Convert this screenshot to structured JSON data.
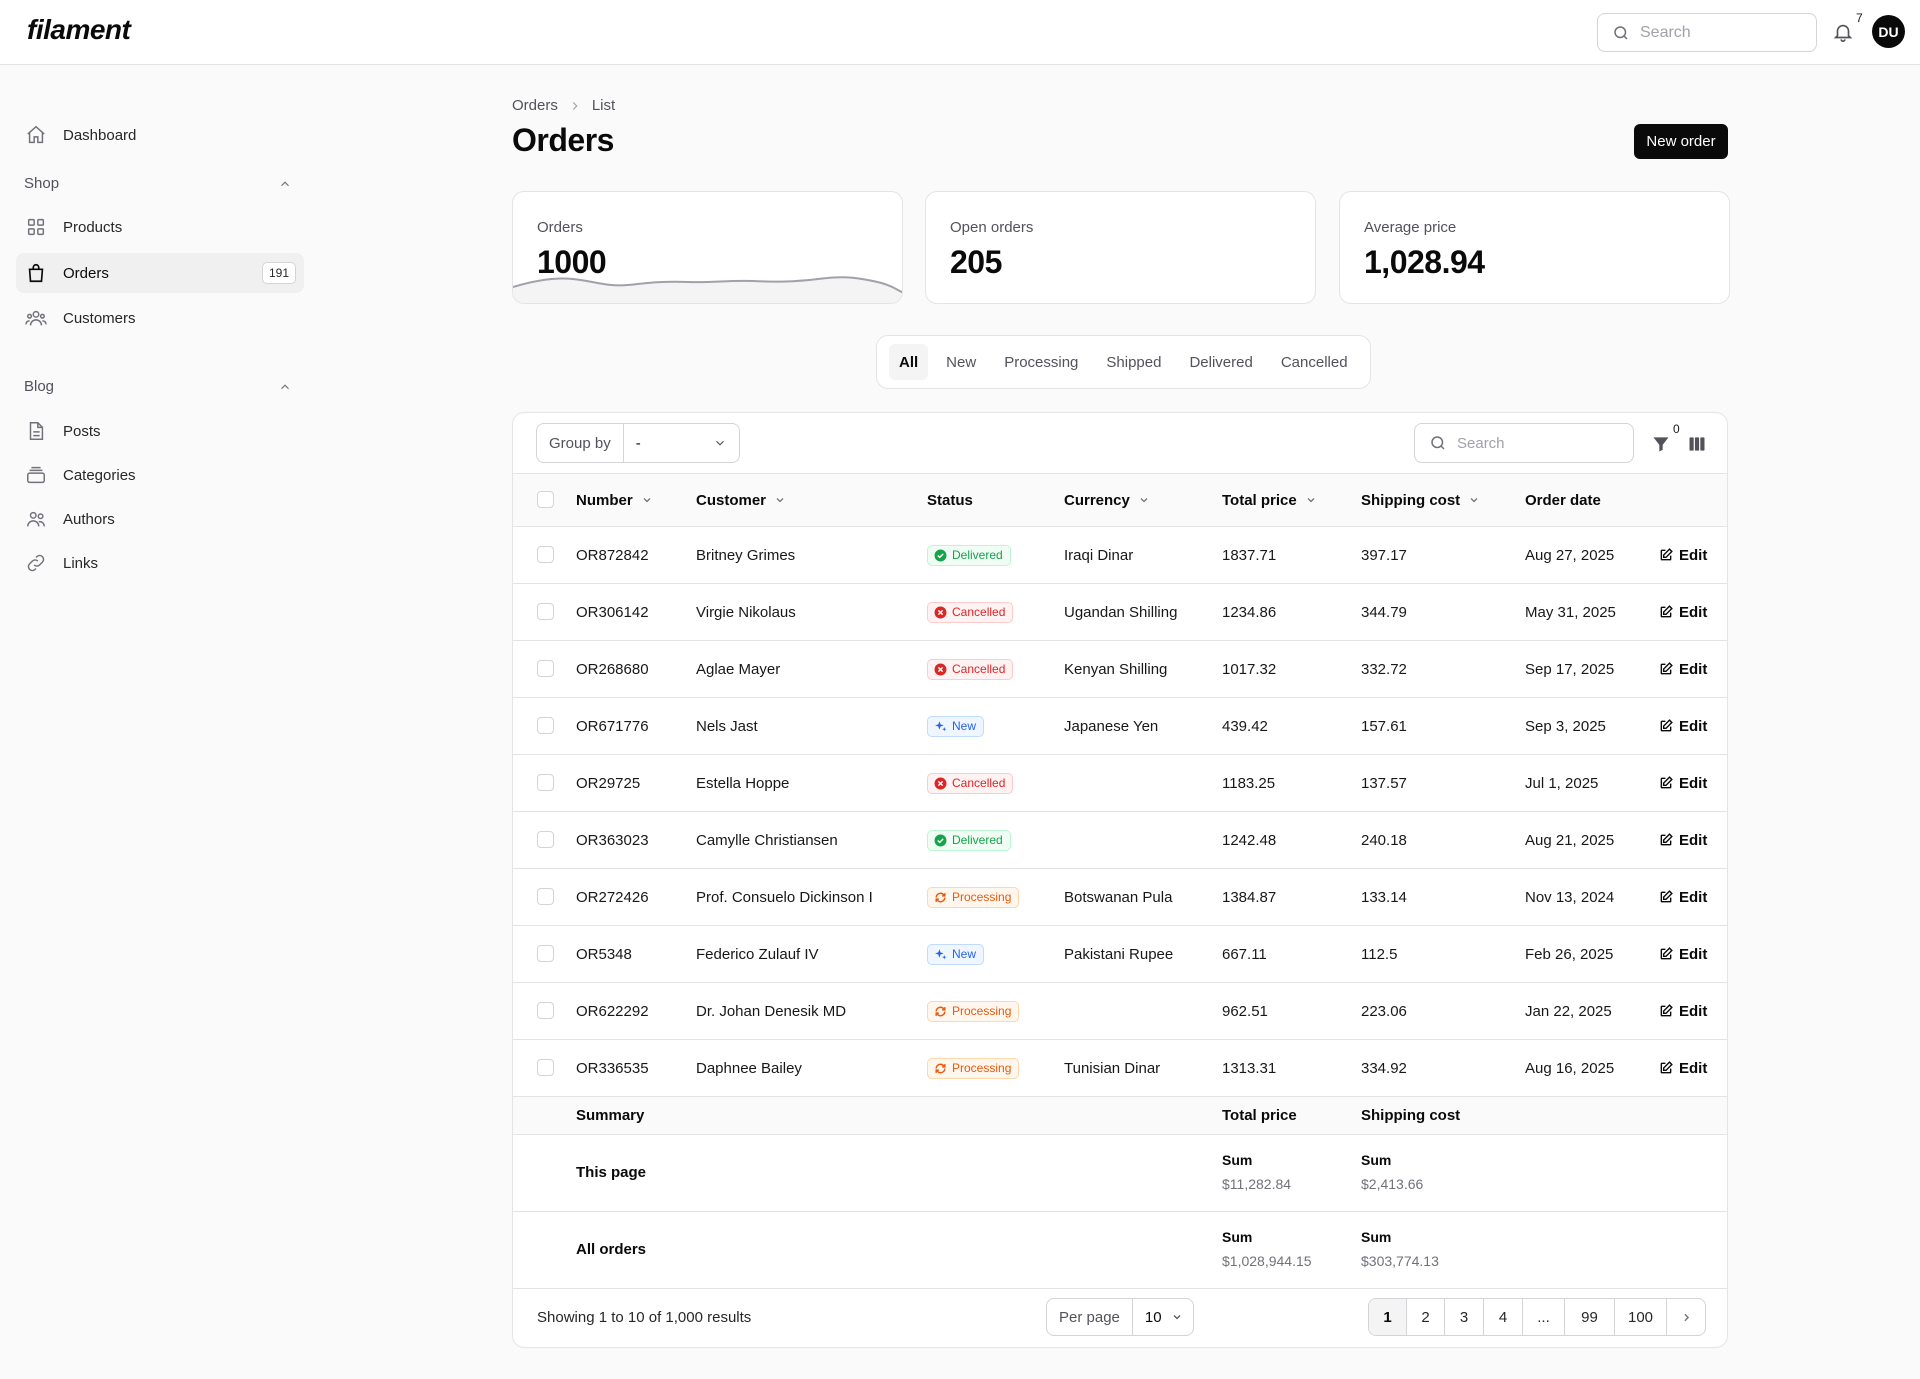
{
  "app": {
    "logo": "filament"
  },
  "topbar": {
    "search_placeholder": "Search",
    "notification_count": "7",
    "avatar_initials": "DU"
  },
  "sidebar": {
    "dashboard": "Dashboard",
    "groups": [
      {
        "label": "Shop",
        "items": [
          {
            "label": "Products"
          },
          {
            "label": "Orders",
            "badge": "191"
          },
          {
            "label": "Customers"
          }
        ]
      },
      {
        "label": "Blog",
        "items": [
          {
            "label": "Posts"
          },
          {
            "label": "Categories"
          },
          {
            "label": "Authors"
          },
          {
            "label": "Links"
          }
        ]
      }
    ]
  },
  "breadcrumb": [
    "Orders",
    "List"
  ],
  "page": {
    "title": "Orders",
    "new_button": "New order"
  },
  "stats": [
    {
      "label": "Orders",
      "value": "1000"
    },
    {
      "label": "Open orders",
      "value": "205"
    },
    {
      "label": "Average price",
      "value": "1,028.94"
    }
  ],
  "tabs": [
    "All",
    "New",
    "Processing",
    "Shipped",
    "Delivered",
    "Cancelled"
  ],
  "table": {
    "group_by_label": "Group by",
    "group_by_value": "-",
    "search_placeholder": "Search",
    "filter_count": "0",
    "columns": [
      "Number",
      "Customer",
      "Status",
      "Currency",
      "Total price",
      "Shipping cost",
      "Order date"
    ],
    "edit_label": "Edit",
    "rows": [
      {
        "number": "OR872842",
        "customer": "Britney Grimes",
        "status": "Delivered",
        "currency": "Iraqi Dinar",
        "total": "1837.71",
        "shipping": "397.17",
        "date": "Aug 27, 2025"
      },
      {
        "number": "OR306142",
        "customer": "Virgie Nikolaus",
        "status": "Cancelled",
        "currency": "Ugandan Shilling",
        "total": "1234.86",
        "shipping": "344.79",
        "date": "May 31, 2025"
      },
      {
        "number": "OR268680",
        "customer": "Aglae Mayer",
        "status": "Cancelled",
        "currency": "Kenyan Shilling",
        "total": "1017.32",
        "shipping": "332.72",
        "date": "Sep 17, 2025"
      },
      {
        "number": "OR671776",
        "customer": "Nels Jast",
        "status": "New",
        "currency": "Japanese Yen",
        "total": "439.42",
        "shipping": "157.61",
        "date": "Sep 3, 2025"
      },
      {
        "number": "OR29725",
        "customer": "Estella Hoppe",
        "status": "Cancelled",
        "currency": "",
        "total": "1183.25",
        "shipping": "137.57",
        "date": "Jul 1, 2025"
      },
      {
        "number": "OR363023",
        "customer": "Camylle Christiansen",
        "status": "Delivered",
        "currency": "",
        "total": "1242.48",
        "shipping": "240.18",
        "date": "Aug 21, 2025"
      },
      {
        "number": "OR272426",
        "customer": "Prof. Consuelo Dickinson I",
        "status": "Processing",
        "currency": "Botswanan Pula",
        "total": "1384.87",
        "shipping": "133.14",
        "date": "Nov 13, 2024"
      },
      {
        "number": "OR5348",
        "customer": "Federico Zulauf IV",
        "status": "New",
        "currency": "Pakistani Rupee",
        "total": "667.11",
        "shipping": "112.5",
        "date": "Feb 26, 2025"
      },
      {
        "number": "OR622292",
        "customer": "Dr. Johan Denesik MD",
        "status": "Processing",
        "currency": "",
        "total": "962.51",
        "shipping": "223.06",
        "date": "Jan 22, 2025"
      },
      {
        "number": "OR336535",
        "customer": "Daphnee Bailey",
        "status": "Processing",
        "currency": "Tunisian Dinar",
        "total": "1313.31",
        "shipping": "334.92",
        "date": "Aug 16, 2025"
      }
    ],
    "summary": {
      "heading": "Summary",
      "col_total": "Total price",
      "col_shipping": "Shipping cost",
      "rows": [
        {
          "label": "This page",
          "sum_label": "Sum",
          "total": "$11,282.84",
          "shipping": "$2,413.66"
        },
        {
          "label": "All orders",
          "sum_label": "Sum",
          "total": "$1,028,944.15",
          "shipping": "$303,774.13"
        }
      ]
    },
    "footer": {
      "showing": "Showing 1 to 10 of 1,000 results",
      "per_page_label": "Per page",
      "per_page_value": "10",
      "pages": [
        "1",
        "2",
        "3",
        "4",
        "...",
        "99",
        "100"
      ],
      "current_page": "1"
    }
  },
  "colors": {
    "brand": "#0a0a0a",
    "delivered": "#16a34a",
    "cancelled": "#dc2626",
    "new": "#2563eb",
    "processing": "#ea580c"
  }
}
